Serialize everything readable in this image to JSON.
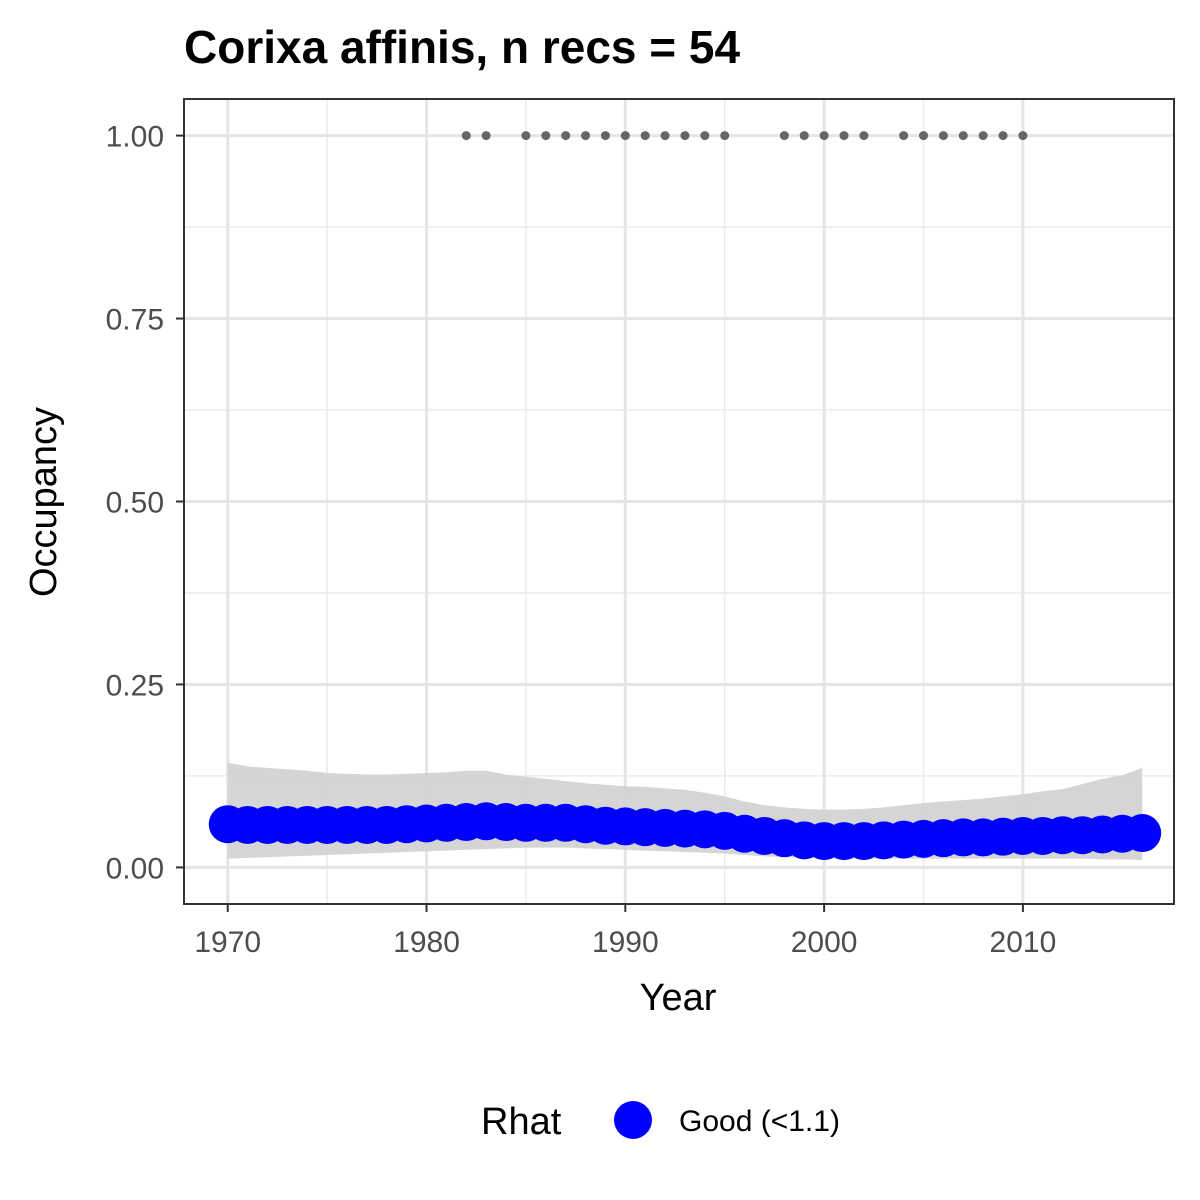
{
  "chart_data": {
    "type": "line",
    "title": "Corixa affinis, n recs = 54",
    "xlabel": "Year",
    "ylabel": "Occupancy",
    "xlim": [
      1967.8,
      2017.6
    ],
    "ylim": [
      -0.05,
      1.05
    ],
    "x_ticks": [
      1970,
      1980,
      1990,
      2000,
      2010
    ],
    "x_tick_labels": [
      "1970",
      "1980",
      "1990",
      "2000",
      "2010"
    ],
    "y_ticks": [
      0,
      0.25,
      0.5,
      0.75,
      1
    ],
    "y_tick_labels": [
      "0.00",
      "0.25",
      "0.50",
      "0.75",
      "1.00"
    ],
    "grid": true,
    "x": [
      1970,
      1971,
      1972,
      1973,
      1974,
      1975,
      1976,
      1977,
      1978,
      1979,
      1980,
      1981,
      1982,
      1983,
      1984,
      1985,
      1986,
      1987,
      1988,
      1989,
      1990,
      1991,
      1992,
      1993,
      1994,
      1995,
      1996,
      1997,
      1998,
      1999,
      2000,
      2001,
      2002,
      2003,
      2004,
      2005,
      2006,
      2007,
      2008,
      2009,
      2010,
      2011,
      2012,
      2013,
      2014,
      2015,
      2016
    ],
    "series": [
      {
        "name": "Good (<1.1)",
        "color": "#0000ff",
        "values": [
          0.059,
          0.058,
          0.058,
          0.058,
          0.058,
          0.058,
          0.058,
          0.058,
          0.058,
          0.059,
          0.06,
          0.061,
          0.062,
          0.063,
          0.062,
          0.061,
          0.061,
          0.061,
          0.059,
          0.057,
          0.056,
          0.055,
          0.054,
          0.053,
          0.052,
          0.05,
          0.046,
          0.043,
          0.04,
          0.037,
          0.036,
          0.036,
          0.036,
          0.037,
          0.038,
          0.039,
          0.04,
          0.041,
          0.041,
          0.042,
          0.043,
          0.043,
          0.044,
          0.044,
          0.045,
          0.046,
          0.047
        ]
      }
    ],
    "ribbon": {
      "color": "#d3d3d3",
      "lower": [
        0.012,
        0.013,
        0.014,
        0.015,
        0.016,
        0.017,
        0.018,
        0.019,
        0.02,
        0.021,
        0.022,
        0.023,
        0.024,
        0.025,
        0.026,
        0.027,
        0.027,
        0.027,
        0.026,
        0.025,
        0.024,
        0.023,
        0.022,
        0.021,
        0.02,
        0.019,
        0.017,
        0.015,
        0.014,
        0.013,
        0.012,
        0.012,
        0.012,
        0.012,
        0.012,
        0.012,
        0.012,
        0.012,
        0.012,
        0.012,
        0.012,
        0.012,
        0.012,
        0.012,
        0.011,
        0.011,
        0.01
      ],
      "upper": [
        0.143,
        0.138,
        0.136,
        0.134,
        0.132,
        0.129,
        0.128,
        0.127,
        0.127,
        0.128,
        0.129,
        0.13,
        0.132,
        0.132,
        0.127,
        0.124,
        0.121,
        0.118,
        0.115,
        0.113,
        0.111,
        0.11,
        0.108,
        0.106,
        0.102,
        0.097,
        0.09,
        0.085,
        0.082,
        0.08,
        0.079,
        0.079,
        0.08,
        0.082,
        0.085,
        0.088,
        0.09,
        0.092,
        0.094,
        0.097,
        0.1,
        0.104,
        0.107,
        0.114,
        0.121,
        0.126,
        0.136
      ]
    },
    "records": {
      "color": "#666666",
      "y": 1.0,
      "x": [
        1982,
        1983,
        1985,
        1986,
        1987,
        1988,
        1989,
        1990,
        1991,
        1992,
        1993,
        1994,
        1995,
        1998,
        1999,
        2000,
        2001,
        2002,
        2004,
        2005,
        2006,
        2007,
        2008,
        2009,
        2010
      ]
    },
    "legend": {
      "position": "bottom",
      "title": "Rhat",
      "items": [
        {
          "label": "Good (<1.1)",
          "color": "#0000ff"
        }
      ]
    }
  }
}
